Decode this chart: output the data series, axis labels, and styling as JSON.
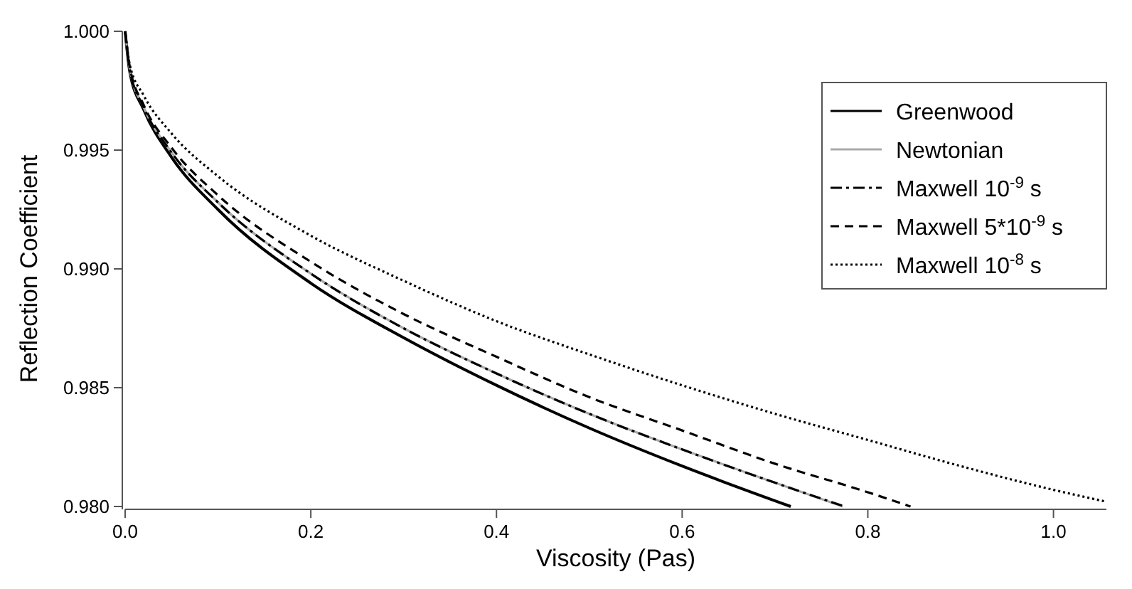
{
  "chart_data": {
    "type": "line",
    "xlabel": "Viscosity (Pas)",
    "ylabel": "Reflection Coefficient",
    "xlim": [
      0,
      1.057
    ],
    "ylim": [
      0.98,
      1.0
    ],
    "xticks": [
      {
        "value": 0,
        "label": "0.0"
      },
      0.2,
      0.4,
      0.6,
      0.8,
      {
        "value": 1.0,
        "label": "1.0"
      }
    ],
    "yticks": [
      {
        "value": 0.98,
        "label": "0.980"
      },
      0.985,
      {
        "value": 0.99,
        "label": "0.990"
      },
      0.995,
      {
        "value": 1.0,
        "label": "1.000"
      }
    ],
    "grid": false,
    "legend": "top right",
    "series": [
      {
        "name": "Greenwood",
        "color": "#000000",
        "line_style": "solid",
        "x": [
          0,
          0.005,
          0.02,
          0.05,
          0.1,
          0.2,
          0.3,
          0.4,
          0.5,
          0.6,
          0.717
        ],
        "values": [
          1.0,
          0.9983,
          0.9967,
          0.9947,
          0.9925,
          0.9894,
          0.9871,
          0.9851,
          0.9833,
          0.9817,
          0.98
        ]
      },
      {
        "name": "Newtonian",
        "color": "#aaaaaa",
        "line_style": "solid",
        "x": [
          0,
          0.005,
          0.02,
          0.05,
          0.1,
          0.2,
          0.3,
          0.4,
          0.5,
          0.6,
          0.7,
          0.773
        ],
        "values": [
          1.0,
          0.9984,
          0.9968,
          0.9949,
          0.9928,
          0.9898,
          0.9875,
          0.9856,
          0.9839,
          0.9824,
          0.981,
          0.98
        ]
      },
      {
        "name": "Maxwell 10$^{-9}$ s",
        "color": "#000000",
        "line_style": "dashdot",
        "x": [
          0,
          0.005,
          0.02,
          0.05,
          0.1,
          0.2,
          0.3,
          0.4,
          0.5,
          0.6,
          0.7,
          0.775
        ],
        "values": [
          1.0,
          0.9984,
          0.9968,
          0.9949,
          0.9928,
          0.9898,
          0.9875,
          0.9856,
          0.9839,
          0.9824,
          0.981,
          0.98
        ]
      },
      {
        "name": "Maxwell 5*10$^{-9}$ s",
        "color": "#000000",
        "line_style": "dashed",
        "x": [
          0,
          0.005,
          0.02,
          0.05,
          0.1,
          0.2,
          0.3,
          0.4,
          0.5,
          0.6,
          0.7,
          0.8,
          0.846
        ],
        "values": [
          1.0,
          0.9985,
          0.9969,
          0.9951,
          0.9931,
          0.9903,
          0.9881,
          0.9863,
          0.9846,
          0.9832,
          0.9818,
          0.9806,
          0.98
        ]
      },
      {
        "name": "Maxwell 10$^{-8}$ s",
        "color": "#000000",
        "line_style": "dotted",
        "x": [
          0,
          0.005,
          0.02,
          0.05,
          0.1,
          0.2,
          0.3,
          0.4,
          0.5,
          0.6,
          0.7,
          0.8,
          0.9,
          1.0,
          1.057
        ],
        "values": [
          1.0,
          0.9986,
          0.9973,
          0.9957,
          0.9939,
          0.9914,
          0.9895,
          0.9878,
          0.9864,
          0.9851,
          0.9839,
          0.9828,
          0.9817,
          0.9807,
          0.9802
        ]
      }
    ]
  }
}
